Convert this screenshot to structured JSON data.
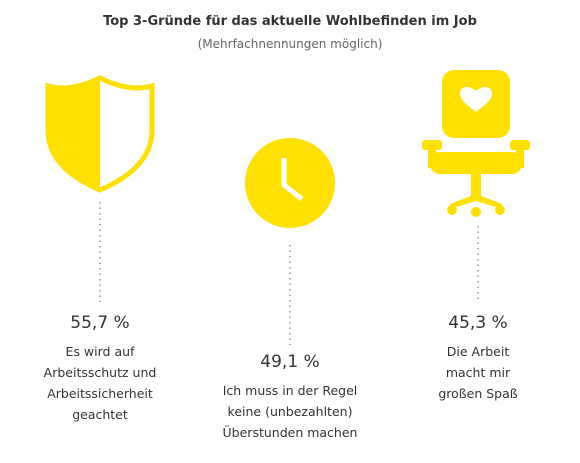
{
  "header": {
    "title": "Top 3-Gründe für das aktuelle Wohlbefinden im Job",
    "subtitle": "(Mehrfachnennungen möglich)"
  },
  "items": [
    {
      "value": "55,7 %",
      "lines": [
        "Es wird auf",
        "Arbeitsschutz und",
        "Arbeitssicherheit",
        "geachtet"
      ]
    },
    {
      "value": "49,1 %",
      "lines": [
        "Ich muss in der Regel",
        "keine (unbezahlten)",
        "Überstunden machen"
      ]
    },
    {
      "value": "45,3 %",
      "lines": [
        "Die Arbeit",
        "macht mir",
        "großen Spaß"
      ]
    }
  ]
}
